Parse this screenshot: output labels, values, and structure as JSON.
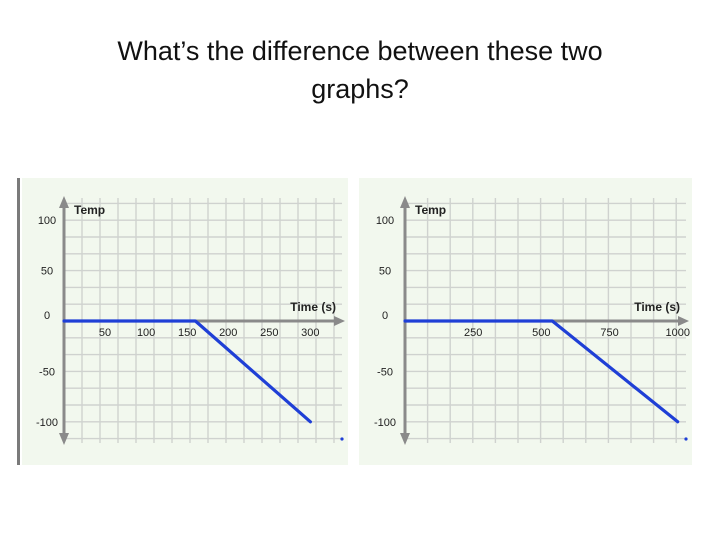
{
  "slide": {
    "title_line1": "What’s the difference between these two",
    "title_line2": "graphs?"
  },
  "colors": {
    "panel_bg": "#f2f8ee",
    "grid": "#cfd2cf",
    "axis": "#8a8a8a",
    "line": "#1f3fd6",
    "left_border": "#7a7a7a"
  },
  "chart_data": [
    {
      "type": "line",
      "xlabel": "Time (s)",
      "ylabel": "Temp",
      "x_ticks": [
        50,
        100,
        150,
        200,
        250,
        300
      ],
      "y_ticks": [
        100,
        50,
        0,
        -50,
        -100
      ],
      "y_tick_labels": [
        "100",
        "50",
        "0",
        "-50",
        "-100"
      ],
      "xlim": [
        0,
        330
      ],
      "ylim": [
        -120,
        120
      ],
      "grid": true,
      "series": [
        {
          "x": [
            0,
            160,
            300
          ],
          "y": [
            0,
            0,
            -100
          ]
        }
      ]
    },
    {
      "type": "line",
      "xlabel": "Time (s)",
      "ylabel": "Temp",
      "x_ticks": [
        250,
        500,
        750,
        1000
      ],
      "y_ticks": [
        100,
        50,
        0,
        -50,
        -100
      ],
      "y_tick_labels": [
        "100",
        "50",
        "0",
        "-50",
        "-100"
      ],
      "xlim": [
        0,
        1100
      ],
      "ylim": [
        -120,
        120
      ],
      "grid": true,
      "series": [
        {
          "x": [
            0,
            540,
            1000
          ],
          "y": [
            0,
            0,
            -100
          ]
        }
      ]
    }
  ]
}
